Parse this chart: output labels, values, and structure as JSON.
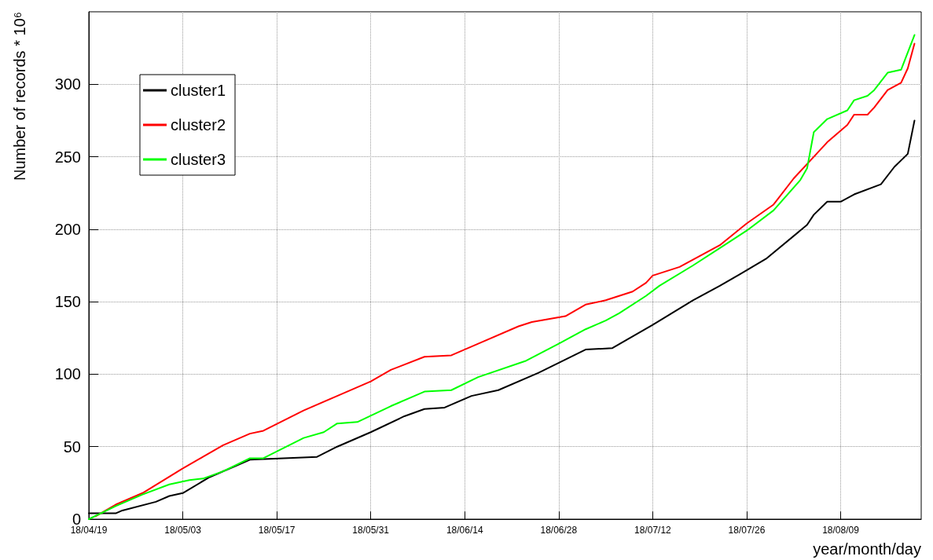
{
  "chart_data": {
    "type": "line",
    "xlabel": "year/month/day",
    "ylabel": "Number of records * 10⁶",
    "xlim": [
      "--04-19",
      "--08-21"
    ],
    "ylim": [
      0,
      350
    ],
    "xticks": [
      {
        "value": "--04-19",
        "label": "18/04/19"
      },
      {
        "value": "--05-03",
        "label": "18/05/03"
      },
      {
        "value": "--05-17",
        "label": "18/05/17"
      },
      {
        "value": "--05-31",
        "label": "18/05/31"
      },
      {
        "value": "--06-14",
        "label": "18/06/14"
      },
      {
        "value": "--06-28",
        "label": "18/06/28"
      },
      {
        "value": "--07-12",
        "label": "18/07/12"
      },
      {
        "value": "--07-26",
        "label": "18/07/26"
      },
      {
        "value": "--08-09",
        "label": "18/08/09"
      }
    ],
    "yticks": [
      0,
      50,
      100,
      150,
      200,
      250,
      300
    ],
    "grid": true,
    "legend": "top left",
    "marker": "none",
    "line_style": "solid",
    "series": [
      {
        "name": "cluster1",
        "color": "#000000",
        "x": [
          "--04-19",
          "--04-23",
          "--04-24",
          "--04-29",
          "--05-01",
          "--05-03",
          "--05-07",
          "--05-11",
          "--05-13",
          "--05-23",
          "--05-26",
          "--05-31",
          "--06-05",
          "--06-08",
          "--06-11",
          "--06-15",
          "--06-19",
          "--06-25",
          "--07-02",
          "--07-06",
          "--07-12",
          "--07-18",
          "--07-22",
          "--07-25",
          "--07-29",
          "--08-04",
          "--08-05",
          "--08-07",
          "--08-09",
          "--08-11",
          "--08-15",
          "--08-17",
          "--08-19",
          "--08-20"
        ],
        "values": [
          4,
          4,
          6,
          12,
          16,
          18,
          29,
          37,
          41,
          43,
          50,
          60,
          71,
          76,
          77,
          85,
          89,
          101,
          117,
          118,
          134,
          151,
          161,
          169,
          180,
          203,
          210,
          219,
          219,
          224,
          231,
          243,
          252,
          275
        ]
      },
      {
        "name": "cluster2",
        "color": "#ff0000",
        "x": [
          "--04-20",
          "--04-23",
          "--04-27",
          "--05-03",
          "--05-06",
          "--05-09",
          "--05-13",
          "--05-15",
          "--05-21",
          "--05-26",
          "--05-31",
          "--06-03",
          "--06-08",
          "--06-12",
          "--06-16",
          "--06-22",
          "--06-24",
          "--06-29",
          "--07-02",
          "--07-05",
          "--07-09",
          "--07-11",
          "--07-12",
          "--07-16",
          "--07-18",
          "--07-22",
          "--07-26",
          "--07-30",
          "--08-02",
          "--08-05",
          "--08-07",
          "--08-10",
          "--08-11",
          "--08-13",
          "--08-14",
          "--08-16",
          "--08-18",
          "--08-19",
          "--08-20"
        ],
        "values": [
          2,
          10,
          18,
          35,
          43,
          51,
          59,
          61,
          75,
          85,
          95,
          103,
          112,
          113,
          121,
          133,
          136,
          140,
          148,
          151,
          157,
          163,
          168,
          174,
          179,
          189,
          204,
          217,
          235,
          250,
          260,
          272,
          279,
          279,
          284,
          296,
          301,
          311,
          328
        ]
      },
      {
        "name": "cluster3",
        "color": "#00ff00",
        "x": [
          "--04-19",
          "--04-23",
          "--04-27",
          "--05-01",
          "--05-04",
          "--05-06",
          "--05-09",
          "--05-13",
          "--05-15",
          "--05-21",
          "--05-24",
          "--05-26",
          "--05-29",
          "--06-03",
          "--06-08",
          "--06-12",
          "--06-16",
          "--06-23",
          "--06-28",
          "--07-02",
          "--07-05",
          "--07-07",
          "--07-11",
          "--07-13",
          "--07-18",
          "--07-22",
          "--07-26",
          "--07-30",
          "--08-03",
          "--08-04",
          "--08-05",
          "--08-07",
          "--08-10",
          "--08-11",
          "--08-13",
          "--08-14",
          "--08-16",
          "--08-18",
          "--08-20"
        ],
        "values": [
          0,
          9,
          17,
          24,
          27,
          28,
          33,
          42,
          42,
          56,
          60,
          66,
          67,
          78,
          88,
          89,
          98,
          109,
          121,
          131,
          137,
          142,
          154,
          161,
          175,
          187,
          199,
          213,
          234,
          242,
          267,
          276,
          282,
          289,
          292,
          296,
          308,
          310,
          334
        ]
      }
    ]
  }
}
